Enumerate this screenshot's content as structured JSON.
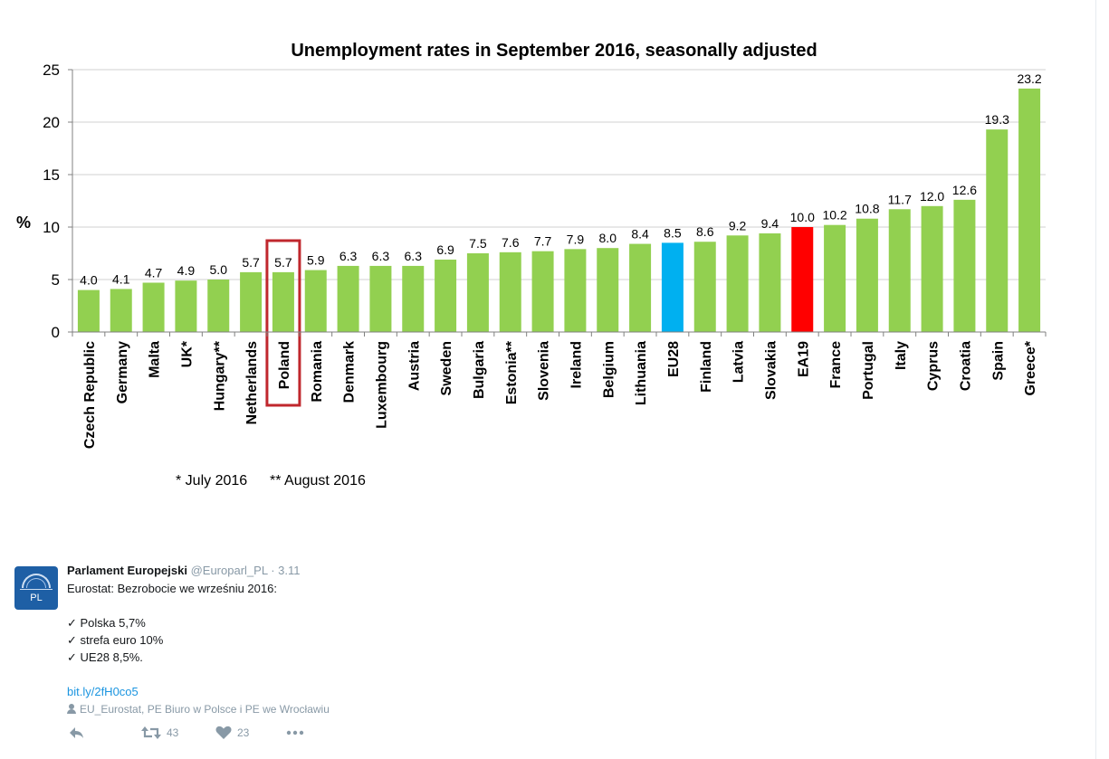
{
  "chart_data": {
    "type": "bar",
    "title": "Unemployment rates in September 2016, seasonally adjusted",
    "ylabel": "%",
    "xlabel": "",
    "ylim": [
      0,
      25
    ],
    "yticks": [
      "0",
      "5",
      "10",
      "15",
      "20",
      "25"
    ],
    "categories": [
      "Czech Republic",
      "Germany",
      "Malta",
      "UK*",
      "Hungary**",
      "Netherlands",
      "Poland",
      "Romania",
      "Denmark",
      "Luxembourg",
      "Austria",
      "Sweden",
      "Bulgaria",
      "Estonia**",
      "Slovenia",
      "Ireland",
      "Belgium",
      "Lithuania",
      "EU28",
      "Finland",
      "Latvia",
      "Slovakia",
      "EA19",
      "France",
      "Portugal",
      "Italy",
      "Cyprus",
      "Croatia",
      "Spain",
      "Greece*"
    ],
    "values": [
      4.0,
      4.1,
      4.7,
      4.9,
      5.0,
      5.7,
      5.7,
      5.9,
      6.3,
      6.3,
      6.3,
      6.9,
      7.5,
      7.6,
      7.7,
      7.9,
      8.0,
      8.4,
      8.5,
      8.6,
      9.2,
      9.4,
      10.0,
      10.2,
      10.8,
      11.7,
      12.0,
      12.6,
      19.3,
      23.2
    ],
    "value_labels": [
      "4.0",
      "4.1",
      "4.7",
      "4.9",
      "5.0",
      "5.7",
      "5.7",
      "5.9",
      "6.3",
      "6.3",
      "6.3",
      "6.9",
      "7.5",
      "7.6",
      "7.7",
      "7.9",
      "8.0",
      "8.4",
      "8.5",
      "8.6",
      "9.2",
      "9.4",
      "10.0",
      "10.2",
      "10.8",
      "11.7",
      "12.0",
      "12.6",
      "19.3",
      "23.2"
    ],
    "grid": true,
    "colors": {
      "default": "#92d050",
      "EU28": "#00b0f0",
      "EA19": "#ff0000",
      "highlight_box": "#c0272d"
    },
    "highlighted_category": "Poland",
    "footnotes": [
      "* July 2016",
      "** August 2016"
    ]
  },
  "tweet": {
    "avatar_label": "PL",
    "author_name": "Parlament Europejski",
    "handle": "@Europarl_PL",
    "dot": "·",
    "time": "3.11",
    "lines": [
      "Eurostat: Bezrobocie we wrześniu 2016:",
      "",
      "✓ Polska 5,7%",
      "✓ strefa euro 10%",
      "✓ UE28 8,5%."
    ],
    "link": "bit.ly/2fH0co5",
    "tagged": "EU_Eurostat, PE Biuro w Polsce i PE we Wrocławiu",
    "actions": {
      "reply_icon": "reply-icon",
      "retweet_icon": "retweet-icon",
      "retweet_count": "43",
      "like_icon": "heart-icon",
      "like_count": "23",
      "more_icon": "more-icon"
    }
  }
}
